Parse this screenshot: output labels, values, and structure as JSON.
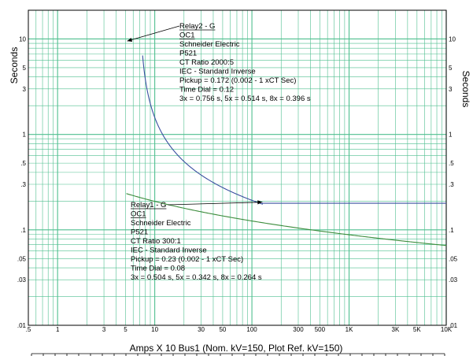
{
  "chart_data": {
    "type": "line",
    "xscale": "log",
    "yscale": "log",
    "xlim": [
      0.5,
      10000
    ],
    "ylim": [
      0.01,
      20
    ],
    "grid": true,
    "xlabel": "Amps X 10  Bus1 (Nom. kV=150, Plot Ref. kV=150)",
    "ylabel": "Seconds",
    "ylabel_right": "Seconds",
    "x_ticks": [
      {
        "value": 0.5,
        "label": ".5"
      },
      {
        "value": 1,
        "label": "1"
      },
      {
        "value": 3,
        "label": "3"
      },
      {
        "value": 5,
        "label": "5"
      },
      {
        "value": 10,
        "label": "10"
      },
      {
        "value": 30,
        "label": "30"
      },
      {
        "value": 50,
        "label": "50"
      },
      {
        "value": 100,
        "label": "100"
      },
      {
        "value": 300,
        "label": "300"
      },
      {
        "value": 500,
        "label": "500"
      },
      {
        "value": 1000,
        "label": "1K"
      },
      {
        "value": 3000,
        "label": "3K"
      },
      {
        "value": 5000,
        "label": "5K"
      },
      {
        "value": 10000,
        "label": "10K"
      }
    ],
    "y_ticks": [
      {
        "value": 0.01,
        "label": ".01"
      },
      {
        "value": 0.03,
        "label": ".03"
      },
      {
        "value": 0.05,
        "label": ".05"
      },
      {
        "value": 0.1,
        "label": ".1"
      },
      {
        "value": 0.3,
        "label": ".3"
      },
      {
        "value": 0.5,
        "label": ".5"
      },
      {
        "value": 1,
        "label": "1"
      },
      {
        "value": 3,
        "label": "3"
      },
      {
        "value": 5,
        "label": "5"
      },
      {
        "value": 10,
        "label": "10"
      }
    ],
    "series": [
      {
        "color": "#3c8c3c",
        "curve": {
          "pickup": 0.1728,
          "tms": 0.12,
          "k": 0.14,
          "alpha": 0.02,
          "x_start": 5.1,
          "x_end": 10000
        },
        "annotation": {
          "anchor": {
            "x": 5.2,
            "y": 9.5
          },
          "lines": [
            "Relay2 - G",
            "OC1",
            "Schneider Electric",
            "P521",
            "CT Ratio 2000:5",
            "IEC - Standard Inverse",
            "Pickup = 0.172 (0.002 - 1  xCT Sec)",
            "Time Dial = 0.12",
            "3x = 0.756 s, 5x = 0.514 s, 8x = 0.396 s"
          ]
        }
      },
      {
        "color": "#3a4fa0",
        "curve": {
          "pickup": 6.9,
          "tms": 0.08,
          "k": 0.14,
          "alpha": 0.02,
          "x_start": 7.5,
          "x_end": 128
        },
        "flat": {
          "x_start": 128,
          "x_end": 10000,
          "y": 0.19
        },
        "annotation": {
          "anchor": {
            "x": 128,
            "y": 0.195
          },
          "lines": [
            "Relay1 - G",
            "OC1",
            "Schneider Electric",
            "P521",
            "CT Ratio 300:1",
            "IEC - Standard Inverse",
            "Pickup = 0.23 (0.002 - 1  xCT Sec)",
            "Time Dial = 0.08",
            "3x = 0.504 s, 5x = 0.342 s, 8x = 0.264 s"
          ]
        }
      }
    ]
  }
}
